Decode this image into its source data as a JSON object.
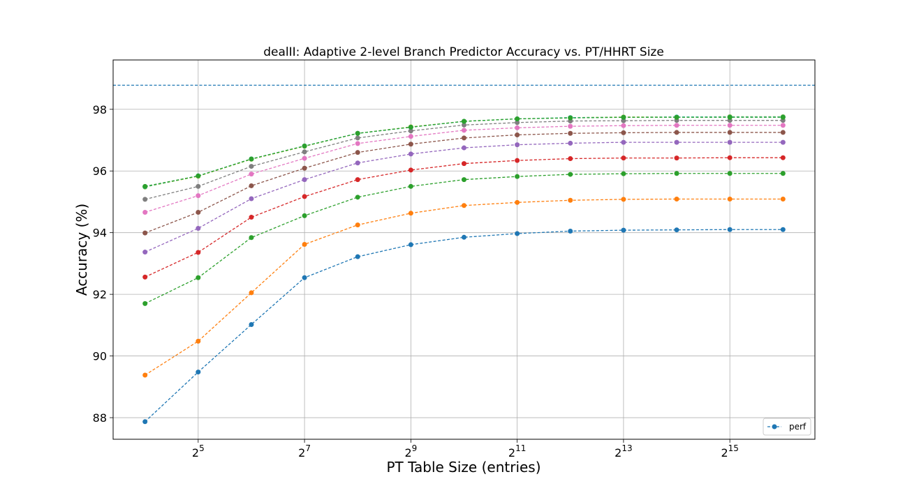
{
  "chart_data": {
    "type": "line",
    "title": "dealII: Adaptive 2-level Branch Predictor Accuracy vs. PT/HHRT Size",
    "xlabel": "PT Table Size (entries)",
    "ylabel": "Accuracy (%)",
    "x_scale": "log2",
    "x": [
      4,
      5,
      6,
      7,
      8,
      9,
      10,
      11,
      12,
      13,
      14,
      15,
      16
    ],
    "xlim": [
      3.4,
      16.6
    ],
    "ylim": [
      87.3,
      99.6
    ],
    "x_ticks": [
      {
        "exp": 5,
        "base": "2",
        "sup": "5"
      },
      {
        "exp": 7,
        "base": "2",
        "sup": "7"
      },
      {
        "exp": 9,
        "base": "2",
        "sup": "9"
      },
      {
        "exp": 11,
        "base": "2",
        "sup": "11"
      },
      {
        "exp": 13,
        "base": "2",
        "sup": "13"
      },
      {
        "exp": 15,
        "base": "2",
        "sup": "15"
      }
    ],
    "y_ticks": [
      "88",
      "90",
      "92",
      "94",
      "96",
      "98"
    ],
    "grid": true,
    "reference_line": {
      "y": 98.78,
      "color": "#1f77b4",
      "style": "dashed"
    },
    "series": [
      {
        "name": "perf",
        "color": "#1f77b4",
        "values": [
          87.87,
          89.48,
          91.02,
          92.54,
          93.22,
          93.61,
          93.85,
          93.97,
          94.05,
          94.08,
          94.09,
          94.1,
          94.1
        ]
      },
      {
        "name": "",
        "color": "#ff7f0e",
        "values": [
          89.38,
          90.48,
          92.05,
          93.62,
          94.25,
          94.63,
          94.88,
          94.98,
          95.05,
          95.08,
          95.09,
          95.09,
          95.09
        ]
      },
      {
        "name": "",
        "color": "#2ca02c",
        "values": [
          91.7,
          92.54,
          93.84,
          94.55,
          95.15,
          95.5,
          95.72,
          95.82,
          95.89,
          95.91,
          95.92,
          95.92,
          95.92
        ]
      },
      {
        "name": "",
        "color": "#d62728",
        "values": [
          92.56,
          93.36,
          94.5,
          95.17,
          95.72,
          96.03,
          96.24,
          96.34,
          96.4,
          96.42,
          96.42,
          96.43,
          96.43
        ]
      },
      {
        "name": "",
        "color": "#9467bd",
        "values": [
          93.37,
          94.14,
          95.1,
          95.72,
          96.26,
          96.55,
          96.75,
          96.85,
          96.9,
          96.93,
          96.93,
          96.93,
          96.93
        ]
      },
      {
        "name": "",
        "color": "#8c564b",
        "values": [
          93.99,
          94.66,
          95.52,
          96.09,
          96.6,
          96.87,
          97.07,
          97.17,
          97.22,
          97.24,
          97.25,
          97.25,
          97.25
        ]
      },
      {
        "name": "",
        "color": "#e377c2",
        "values": [
          94.66,
          95.2,
          95.9,
          96.41,
          96.89,
          97.12,
          97.32,
          97.4,
          97.45,
          97.47,
          97.48,
          97.48,
          97.48
        ]
      },
      {
        "name": "",
        "color": "#7f7f7f",
        "values": [
          95.08,
          95.5,
          96.15,
          96.62,
          97.07,
          97.3,
          97.49,
          97.57,
          97.62,
          97.63,
          97.64,
          97.64,
          97.64
        ]
      },
      {
        "name": "",
        "color": "#bcbd22",
        "values": [
          95.48,
          95.83,
          96.38,
          96.8,
          97.22,
          97.43,
          97.61,
          97.69,
          97.73,
          97.75,
          97.75,
          97.76,
          97.76
        ]
      },
      {
        "name": "",
        "color": "#17becf",
        "values": [
          95.49,
          95.84,
          96.39,
          96.81,
          97.22,
          97.42,
          97.61,
          97.69,
          97.73,
          97.74,
          97.75,
          97.75,
          97.75
        ]
      },
      {
        "name": "",
        "color": "#2ca02c",
        "values": [
          95.5,
          95.84,
          96.39,
          96.81,
          97.22,
          97.42,
          97.61,
          97.69,
          97.72,
          97.74,
          97.74,
          97.74,
          97.74
        ]
      }
    ],
    "legend": {
      "position": "lower-right",
      "entries": [
        "perf"
      ]
    }
  }
}
